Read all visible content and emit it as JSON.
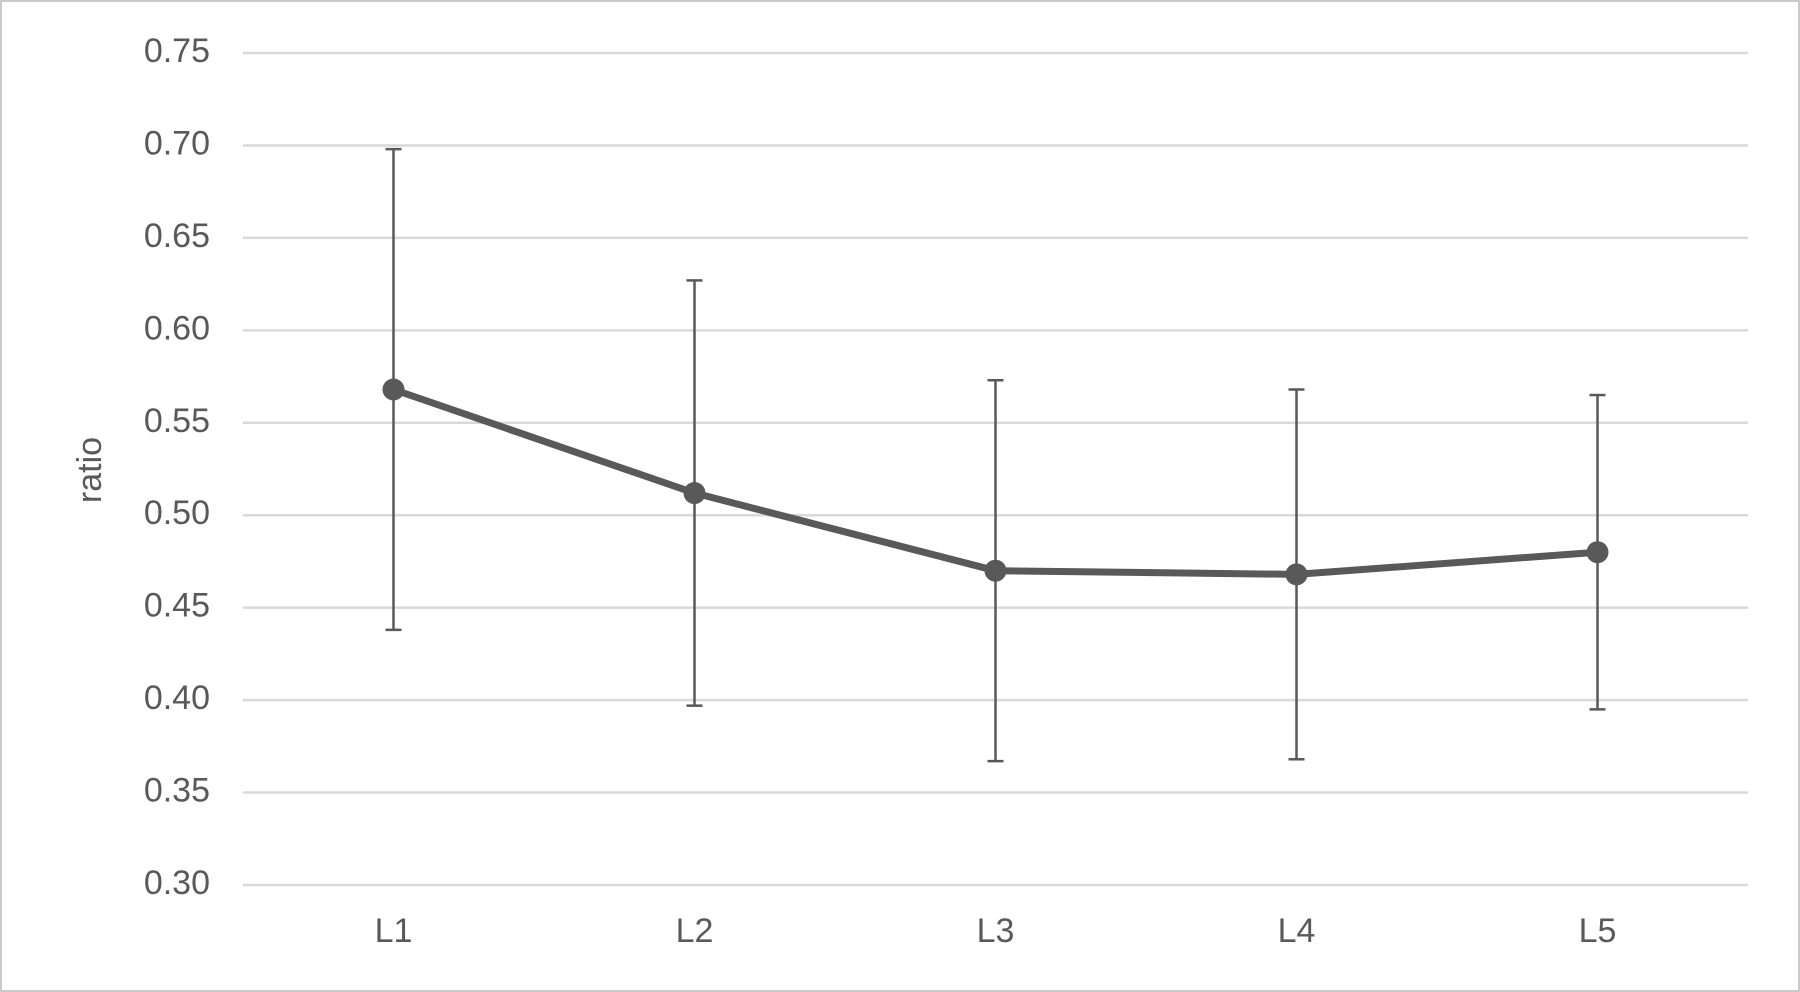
{
  "chart_data": {
    "type": "line",
    "y_label": "ratio",
    "categories": [
      "L1",
      "L2",
      "L3",
      "L4",
      "L5"
    ],
    "series": [
      {
        "color": "#595959",
        "values": [
          0.568,
          0.512,
          0.47,
          0.468,
          0.48
        ],
        "errors": [
          0.13,
          0.115,
          0.103,
          0.1,
          0.085
        ]
      }
    ],
    "ylim": [
      0.3,
      0.75
    ],
    "yticks": [
      {
        "value": 0.3,
        "label": "0.30"
      },
      0.35,
      {
        "value": 0.4,
        "label": "0.40"
      },
      0.45,
      {
        "value": 0.5,
        "label": "0.50"
      },
      0.55,
      {
        "value": 0.6,
        "label": "0.60"
      },
      0.65,
      {
        "value": 0.7,
        "label": "0.70"
      },
      0.75
    ],
    "grid": true
  }
}
